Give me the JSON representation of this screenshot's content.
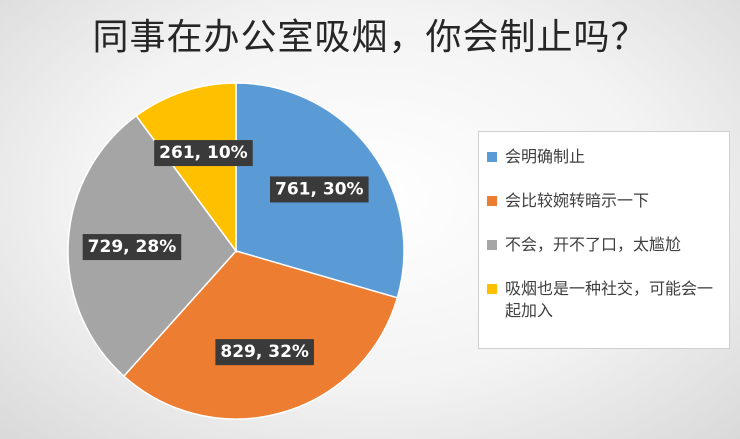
{
  "chart_data": {
    "type": "pie",
    "title": "同事在办公室吸烟，你会制止吗？",
    "categories": [
      "会明确制止",
      "会比较婉转暗示一下",
      "不会，开不了口，太尴尬",
      "吸烟也是一种社交，可能会一起加入"
    ],
    "values": [
      761,
      829,
      729,
      261
    ],
    "percents": [
      "30%",
      "32%",
      "28%",
      "10%"
    ],
    "data_labels": [
      "761, 30%",
      "829, 32%",
      "729, 28%",
      "261, 10%"
    ],
    "colors": [
      "#5b9bd5",
      "#ed7d31",
      "#a5a5a5",
      "#ffc000"
    ],
    "legend_position": "right"
  }
}
